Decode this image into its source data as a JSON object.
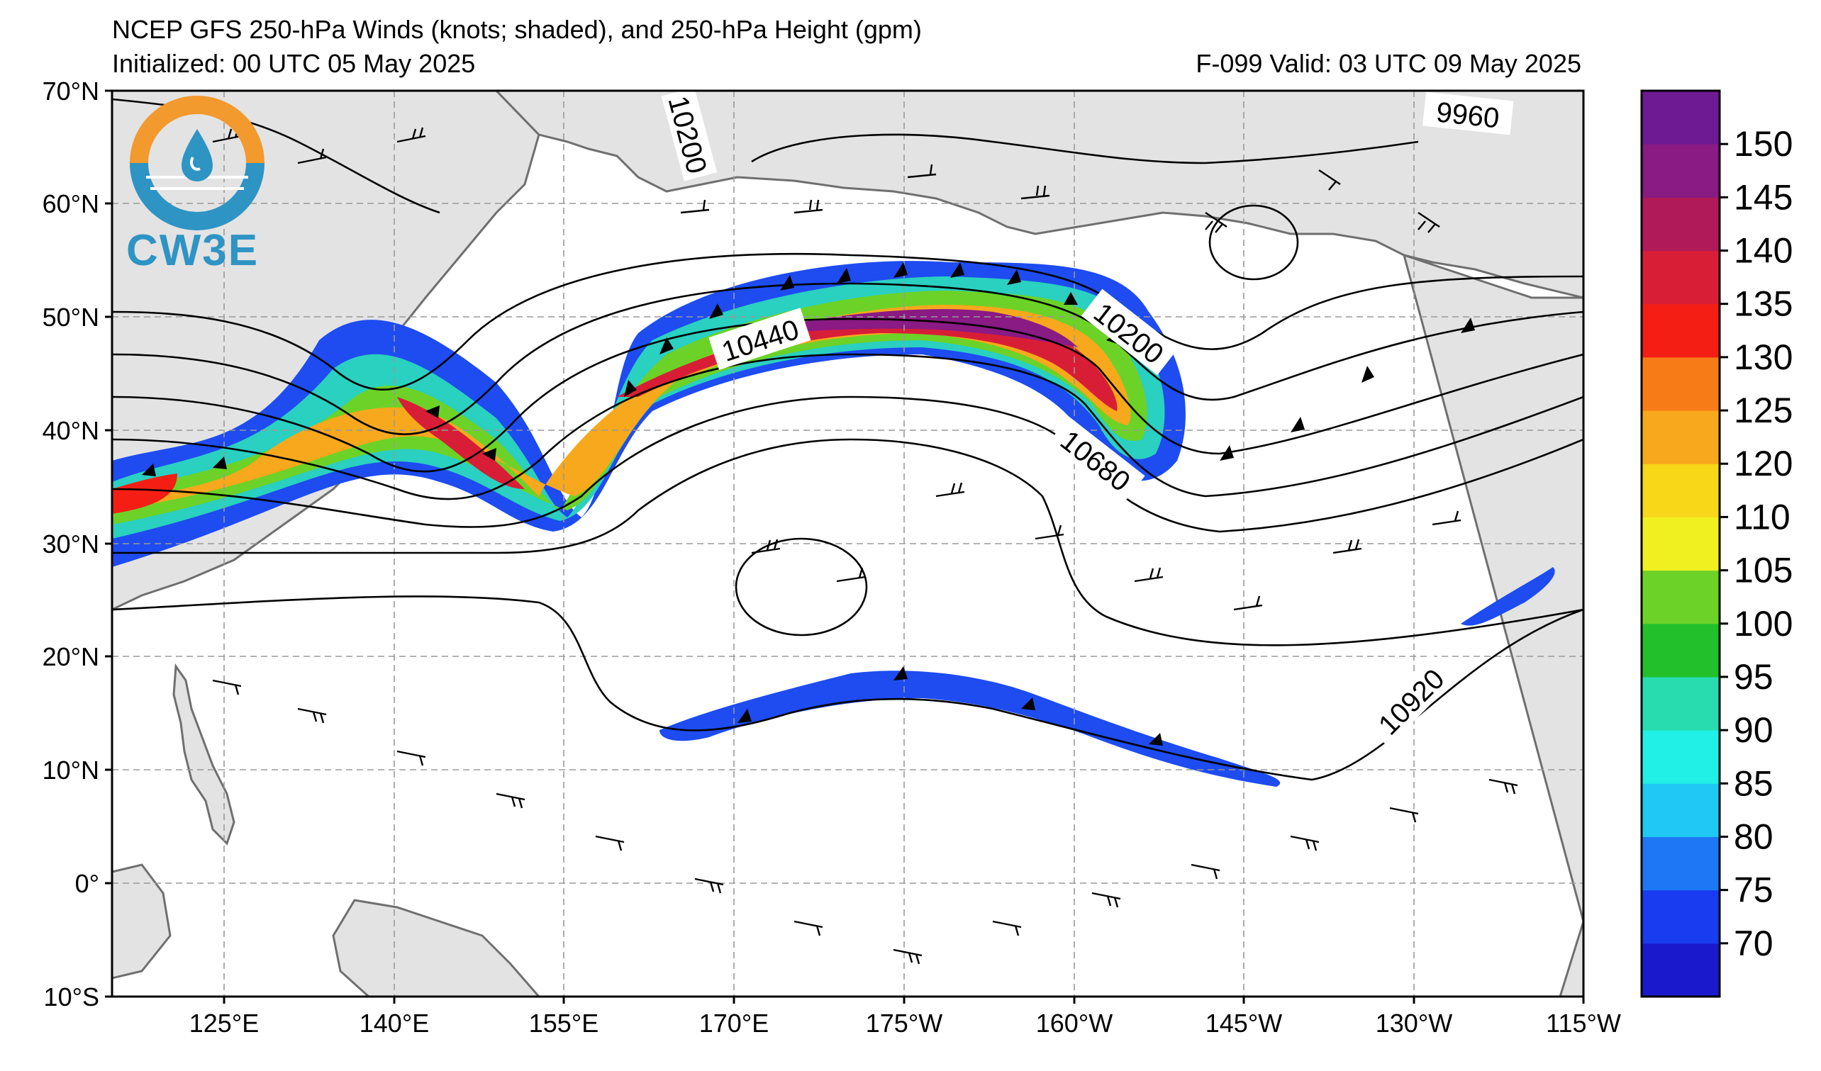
{
  "header": {
    "title": "NCEP GFS 250-hPa Winds (knots; shaded), and 250-hPa Height (gpm)",
    "initialized": "Initialized: 00 UTC 05 May 2025",
    "valid": "F-099  Valid: 03 UTC 09 May 2025"
  },
  "logo": {
    "text": "CW3E",
    "icon": "cw3e-water-drop-icon"
  },
  "map": {
    "lat_labels": [
      "70°N",
      "60°N",
      "50°N",
      "40°N",
      "30°N",
      "20°N",
      "10°N",
      "0°",
      "10°S"
    ],
    "lon_labels": [
      "125°E",
      "140°E",
      "155°E",
      "170°E",
      "175°W",
      "160°W",
      "145°W",
      "130°W",
      "115°W"
    ],
    "contour_labels": [
      "10200",
      "9960",
      "10440",
      "10200",
      "10680",
      "10920"
    ],
    "land_color": "#e3e3e3",
    "coast_color": "#6f6f6f",
    "grid_color": "#9a9a9a"
  },
  "colorbar": {
    "ticks": [
      "150",
      "145",
      "140",
      "135",
      "130",
      "125",
      "120",
      "110",
      "105",
      "100",
      "95",
      "90",
      "85",
      "80",
      "75",
      "70"
    ],
    "colors": [
      "#1a1acc",
      "#1a3cf0",
      "#1e78f5",
      "#20c8f5",
      "#20f0e6",
      "#28dcb0",
      "#22c02a",
      "#6cd228",
      "#f0f020",
      "#f8d618",
      "#f7a81c",
      "#f77c18",
      "#f51e14",
      "#d81e36",
      "#b01a58",
      "#8a1a84",
      "#6e1a92"
    ]
  }
}
